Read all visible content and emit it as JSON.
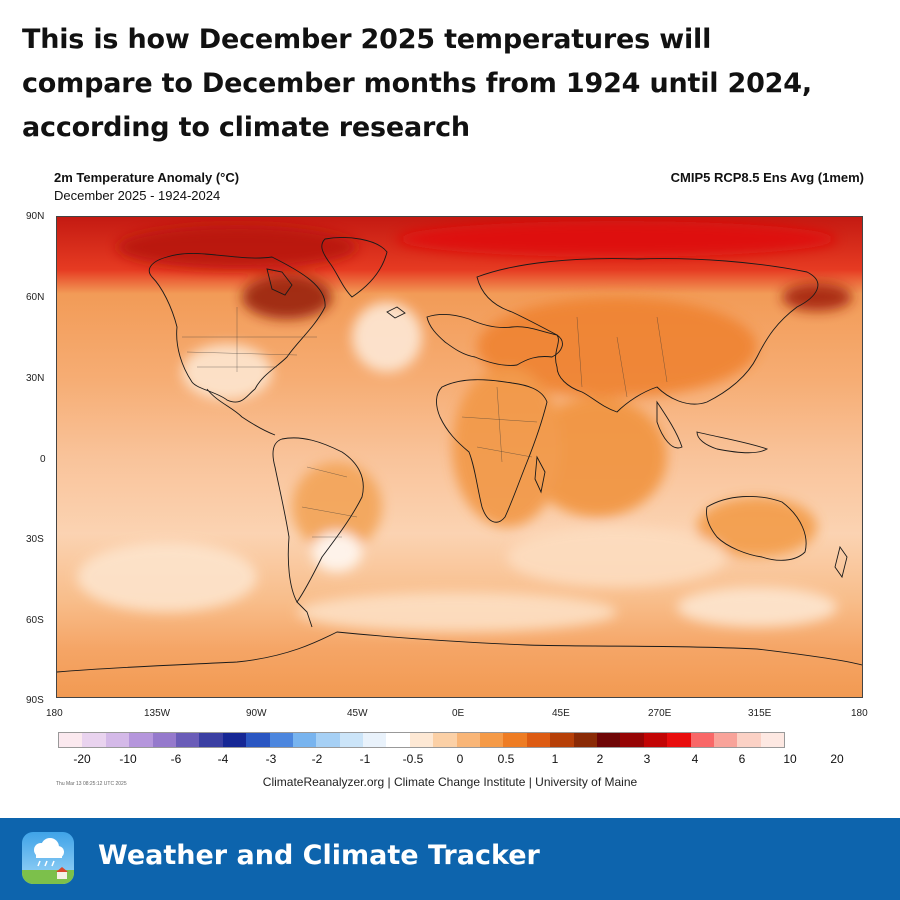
{
  "headline": {
    "lines": [
      "This is how December 2025 temperatures will",
      "compare to December months from 1924 until 2024,",
      "according to climate research"
    ]
  },
  "map": {
    "title": "2m Temperature Anomaly (°C)",
    "subtitle": "December 2025 - 1924-2024",
    "model": "CMIP5 RCP8.5 Ens Avg (1mem)",
    "lat_labels": [
      "90N",
      "60N",
      "30N",
      "0",
      "30S",
      "60S",
      "90S"
    ],
    "lon_labels": [
      "180",
      "135W",
      "90W",
      "45W",
      "0E",
      "45E",
      "270E",
      "315E",
      "180"
    ],
    "timestamp": "Thu Mar 13 08:25:12 UTC 2025",
    "credit": "ClimateReanalyzer.org | Climate Change Institute | University of Maine"
  },
  "legend": {
    "colors": [
      "#fbe9ef",
      "#e9d3ef",
      "#d4b9e8",
      "#b596dc",
      "#9579cc",
      "#6a5cb8",
      "#3b3fa3",
      "#162795",
      "#2a56c2",
      "#4c86de",
      "#78b4ef",
      "#a6d0f5",
      "#cbe4f8",
      "#e9f2fb",
      "#ffffff",
      "#fde8d4",
      "#fbd0a6",
      "#f8b577",
      "#f59a47",
      "#ee7c23",
      "#dd5b12",
      "#b63f07",
      "#8a2a05",
      "#6e0505",
      "#960404",
      "#c20404",
      "#e80c0c",
      "#f86767",
      "#f8a39a",
      "#fbd1c5",
      "#fde8e2"
    ],
    "ticks": [
      "-20",
      "-10",
      "-6",
      "-4",
      "-3",
      "-2",
      "-1",
      "-0.5",
      "0",
      "0.5",
      "1",
      "2",
      "3",
      "4",
      "6",
      "10",
      "20"
    ]
  },
  "brand": {
    "name": "Weather and Climate Tracker",
    "icon": "weather-app-icon",
    "footer_color": "#0d64ad"
  }
}
